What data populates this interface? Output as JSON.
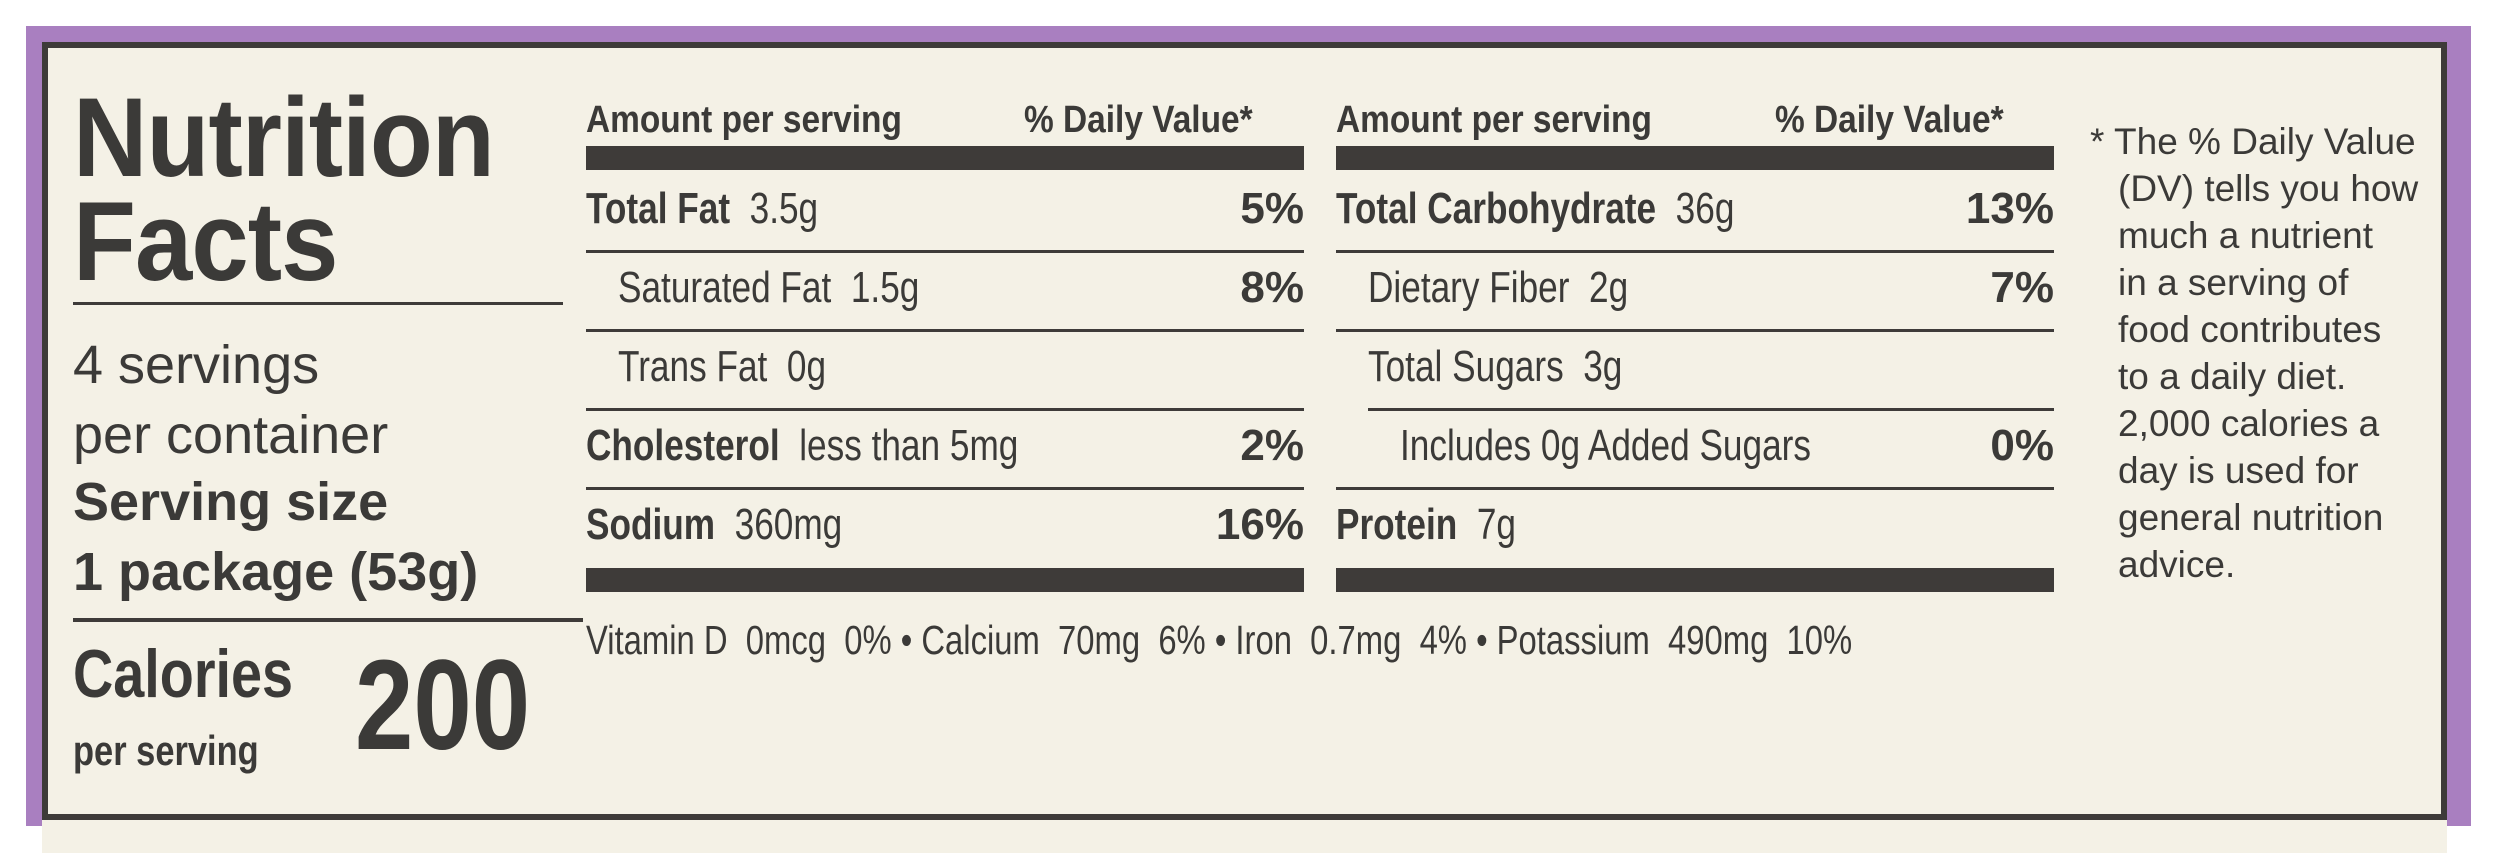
{
  "title": {
    "line1": "Nutrition",
    "line2": "Facts"
  },
  "servings": {
    "line1": "4 servings",
    "line2": "per container",
    "size_label": "Serving size",
    "size_value": "1 package (53g)"
  },
  "calories": {
    "label": "Calories",
    "sub": "per serving",
    "value": "200"
  },
  "header": {
    "amount": "Amount per serving",
    "dv": "% Daily Value*"
  },
  "left_rows": [
    {
      "name": "Total Fat",
      "amount": "3.5g",
      "dv": "5%"
    },
    {
      "name": "Saturated Fat",
      "amount": "1.5g",
      "dv": "8%"
    },
    {
      "name": "Trans Fat",
      "amount": "0g",
      "dv": ""
    },
    {
      "name": "Cholesterol",
      "amount": "less than 5mg",
      "dv": "2%"
    },
    {
      "name": "Sodium",
      "amount": "360mg",
      "dv": "16%"
    }
  ],
  "right_rows": [
    {
      "name": "Total Carbohydrate",
      "amount": "36g",
      "dv": "13%"
    },
    {
      "name": "Dietary Fiber",
      "amount": "2g",
      "dv": "7%"
    },
    {
      "name": "Total Sugars",
      "amount": "3g",
      "dv": ""
    },
    {
      "name": "Includes 0g Added Sugars",
      "amount": "",
      "dv": "0%"
    },
    {
      "name": "Protein",
      "amount": "7g",
      "dv": ""
    }
  ],
  "vitamins": "Vitamin D  0mcg  0% • Calcium  70mg  6% • Iron  0.7mg  4% • Potassium  490mg  10%",
  "footnote": [
    "* The % Daily Value",
    "(DV) tells you how",
    "much a nutrient",
    "in a serving of",
    "food contributes",
    "to a daily diet.",
    "2,000 calories a",
    "day is used for",
    "general nutrition",
    "advice."
  ]
}
